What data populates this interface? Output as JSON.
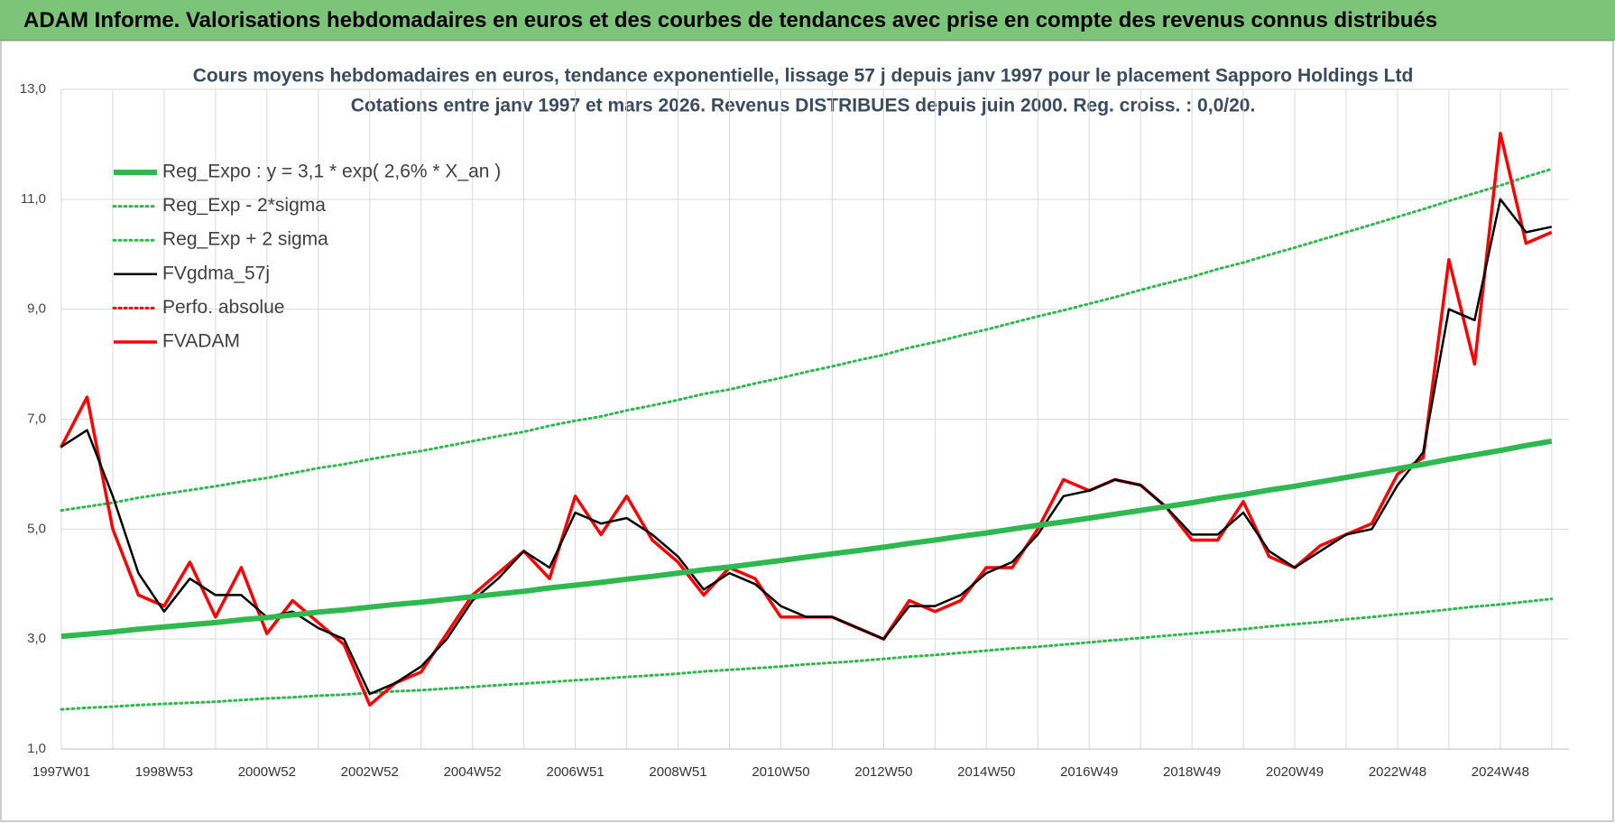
{
  "header": {
    "title": "ADAM Informe. Valorisations hebdomadaires en euros et des courbes de tendances avec prise en compte des revenus connus distribués"
  },
  "chart_data": {
    "type": "line",
    "title": "Cours moyens hebdomadaires en euros, tendance exponentielle, lissage 57 j depuis janv 1997 pour le placement Sapporo Holdings Ltd",
    "subtitle": "Cotations entre janv 1997 et mars 2026. Revenus DISTRIBUES depuis juin 2000. Reg. croiss. : 0,0/20.",
    "categories": [
      "1997W01",
      null,
      null,
      null,
      "1998W53",
      null,
      null,
      null,
      "2000W52",
      null,
      null,
      null,
      "2002W52",
      null,
      null,
      null,
      "2004W52",
      null,
      null,
      null,
      "2006W51",
      null,
      null,
      null,
      "2008W51",
      null,
      null,
      null,
      "2010W50",
      null,
      null,
      null,
      "2012W50",
      null,
      null,
      null,
      "2014W50",
      null,
      null,
      null,
      "2016W49",
      null,
      null,
      null,
      "2018W49",
      null,
      null,
      null,
      "2020W49",
      null,
      null,
      null,
      "2022W48",
      null,
      null,
      null,
      "2024W48",
      null,
      null
    ],
    "ylim": [
      1,
      13
    ],
    "yticks": [
      {
        "value": 1,
        "label": "1,0"
      },
      {
        "value": 3,
        "label": "3,0"
      },
      {
        "value": 5,
        "label": "5,0"
      },
      {
        "value": 7,
        "label": "7,0"
      },
      {
        "value": 9,
        "label": "9,0"
      },
      {
        "value": 11,
        "label": "11,0"
      },
      {
        "value": 13,
        "label": "13,0"
      }
    ],
    "grid": true,
    "series": [
      {
        "name": "Reg_Expo : y = 3,1 * exp( 2,6% *  X_an )",
        "color": "#2eb84e",
        "style": "thick",
        "values": [
          3.05,
          3.09,
          3.13,
          3.18,
          3.22,
          3.26,
          3.3,
          3.35,
          3.39,
          3.44,
          3.49,
          3.53,
          3.58,
          3.63,
          3.67,
          3.72,
          3.77,
          3.82,
          3.87,
          3.93,
          3.98,
          4.03,
          4.09,
          4.14,
          4.2,
          4.26,
          4.31,
          4.37,
          4.43,
          4.49,
          4.55,
          4.61,
          4.67,
          4.74,
          4.8,
          4.87,
          4.93,
          5.0,
          5.07,
          5.13,
          5.2,
          5.27,
          5.34,
          5.41,
          5.48,
          5.56,
          5.63,
          5.71,
          5.78,
          5.86,
          5.94,
          6.02,
          6.1,
          6.18,
          6.27,
          6.35,
          6.43,
          6.52,
          6.6
        ]
      },
      {
        "name": "Reg_Exp - 2*sigma",
        "color": "#2eb84e",
        "style": "dotted",
        "values": [
          1.72,
          1.75,
          1.77,
          1.8,
          1.82,
          1.84,
          1.86,
          1.89,
          1.92,
          1.94,
          1.97,
          1.99,
          2.02,
          2.05,
          2.07,
          2.1,
          2.13,
          2.16,
          2.19,
          2.22,
          2.25,
          2.28,
          2.31,
          2.34,
          2.37,
          2.41,
          2.44,
          2.47,
          2.5,
          2.54,
          2.57,
          2.6,
          2.64,
          2.68,
          2.71,
          2.75,
          2.79,
          2.83,
          2.86,
          2.9,
          2.94,
          2.98,
          3.02,
          3.06,
          3.1,
          3.14,
          3.18,
          3.23,
          3.27,
          3.31,
          3.36,
          3.4,
          3.45,
          3.49,
          3.54,
          3.59,
          3.63,
          3.68,
          3.73
        ]
      },
      {
        "name": "Reg_Exp + 2 sigma",
        "color": "#2eb84e",
        "style": "dotted",
        "values": [
          5.34,
          5.41,
          5.48,
          5.57,
          5.64,
          5.71,
          5.78,
          5.86,
          5.93,
          6.02,
          6.11,
          6.18,
          6.27,
          6.35,
          6.42,
          6.51,
          6.6,
          6.69,
          6.77,
          6.88,
          6.97,
          7.05,
          7.16,
          7.25,
          7.35,
          7.46,
          7.54,
          7.65,
          7.75,
          7.86,
          7.96,
          8.07,
          8.17,
          8.3,
          8.4,
          8.52,
          8.63,
          8.75,
          8.87,
          8.98,
          9.1,
          9.22,
          9.35,
          9.47,
          9.59,
          9.73,
          9.85,
          9.99,
          10.12,
          10.26,
          10.4,
          10.54,
          10.68,
          10.82,
          10.97,
          11.11,
          11.25,
          11.41,
          11.55
        ]
      },
      {
        "name": "FVgdma_57j",
        "color": "#000000",
        "style": "solid",
        "values": [
          6.5,
          6.8,
          5.6,
          4.2,
          3.5,
          4.1,
          3.8,
          3.8,
          3.4,
          3.5,
          3.2,
          3.0,
          2.0,
          2.2,
          2.5,
          3.0,
          3.7,
          4.1,
          4.6,
          4.3,
          5.3,
          5.1,
          5.2,
          4.9,
          4.5,
          3.9,
          4.2,
          4.0,
          3.6,
          3.4,
          3.4,
          3.2,
          3.0,
          3.6,
          3.6,
          3.8,
          4.2,
          4.4,
          4.9,
          5.6,
          5.7,
          5.9,
          5.8,
          5.4,
          4.9,
          4.9,
          5.3,
          4.6,
          4.3,
          4.6,
          4.9,
          5.0,
          5.8,
          6.4,
          9.0,
          8.8,
          11.0,
          10.4,
          10.5
        ]
      },
      {
        "name": "Perfo. absolue",
        "color": "#ff0000",
        "style": "dotted",
        "values": [
          6.5,
          7.4,
          5.0,
          3.8,
          3.6,
          4.4,
          3.4,
          4.3,
          3.1,
          3.7,
          3.3,
          2.9,
          1.8,
          2.2,
          2.4,
          3.1,
          3.8,
          4.2,
          4.6,
          4.1,
          5.6,
          4.9,
          5.6,
          4.8,
          4.4,
          3.8,
          4.3,
          4.1,
          3.4,
          3.4,
          3.4,
          3.2,
          3.0,
          3.7,
          3.5,
          3.7,
          4.3,
          4.3,
          5.0,
          5.9,
          5.7,
          5.9,
          5.8,
          5.4,
          4.8,
          4.8,
          5.5,
          4.5,
          4.3,
          4.7,
          4.9,
          5.1,
          6.0,
          6.3,
          9.9,
          8.0,
          12.2,
          10.2,
          10.4
        ]
      },
      {
        "name": "FVADAM",
        "color": "#ff0000",
        "style": "thick",
        "values": [
          6.5,
          7.4,
          5.0,
          3.8,
          3.6,
          4.4,
          3.4,
          4.3,
          3.1,
          3.7,
          3.3,
          2.9,
          1.8,
          2.2,
          2.4,
          3.1,
          3.8,
          4.2,
          4.6,
          4.1,
          5.6,
          4.9,
          5.6,
          4.8,
          4.4,
          3.8,
          4.3,
          4.1,
          3.4,
          3.4,
          3.4,
          3.2,
          3.0,
          3.7,
          3.5,
          3.7,
          4.3,
          4.3,
          5.0,
          5.9,
          5.7,
          5.9,
          5.8,
          5.4,
          4.8,
          4.8,
          5.5,
          4.5,
          4.3,
          4.7,
          4.9,
          5.1,
          6.0,
          6.3,
          9.9,
          8.0,
          12.2,
          10.2,
          10.4
        ]
      }
    ]
  }
}
